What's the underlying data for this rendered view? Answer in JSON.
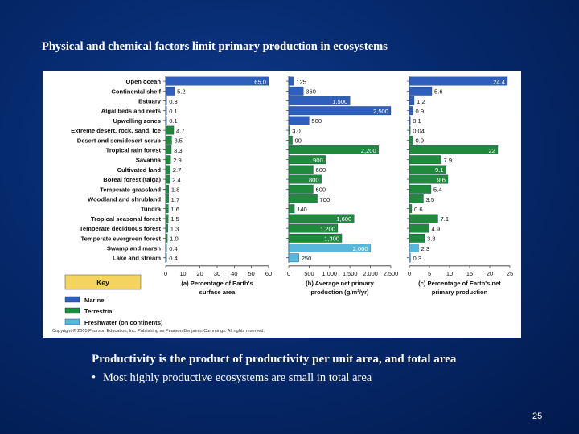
{
  "slide": {
    "title": "Physical and chemical factors limit primary production in ecosystems",
    "caption": "Productivity is the product of productivity per unit area, and total area",
    "bullet_marker": "•",
    "bullet": "Most highly productive ecosystems are small in total area",
    "page_number": "25"
  },
  "colors": {
    "marine": "#2e5fbd",
    "terrestrial": "#1f8a3c",
    "freshwater": "#58b8dc",
    "key_header": "#f4d35e"
  },
  "chart_data": [
    {
      "type": "bar",
      "orientation": "horizontal",
      "categories": [
        "Open ocean",
        "Continental shelf",
        "Estuary",
        "Algal beds and reefs",
        "Upwelling zones",
        "Extreme desert, rock, sand, ice",
        "Desert and semidesert scrub",
        "Tropical rain forest",
        "Savanna",
        "Cultivated land",
        "Boreal forest (taiga)",
        "Temperate grassland",
        "Woodland and shrubland",
        "Tundra",
        "Tropical seasonal forest",
        "Temperate deciduous forest",
        "Temperate evergreen forest",
        "Swamp and marsh",
        "Lake and stream"
      ],
      "category_group": [
        "Marine",
        "Marine",
        "Marine",
        "Marine",
        "Marine",
        "Terrestrial",
        "Terrestrial",
        "Terrestrial",
        "Terrestrial",
        "Terrestrial",
        "Terrestrial",
        "Terrestrial",
        "Terrestrial",
        "Terrestrial",
        "Terrestrial",
        "Terrestrial",
        "Terrestrial",
        "Freshwater (on continents)",
        "Freshwater (on continents)"
      ],
      "values": [
        65.0,
        5.2,
        0.3,
        0.1,
        0.1,
        4.7,
        3.5,
        3.3,
        2.9,
        2.7,
        2.4,
        1.8,
        1.7,
        1.6,
        1.5,
        1.3,
        1.0,
        0.4,
        0.4
      ],
      "value_labels": [
        "65.0",
        "5.2",
        "0.3",
        "0.1",
        "0.1",
        "4.7",
        "3.5",
        "3.3",
        "2.9",
        "2.7",
        "2.4",
        "1.8",
        "1.7",
        "1.6",
        "1.5",
        "1.3",
        "1.0",
        "0.4",
        "0.4"
      ],
      "xlim": [
        0,
        60
      ],
      "xticks": [
        "0",
        "10",
        "20",
        "30",
        "40",
        "50",
        "60"
      ],
      "xlabel": "(a) Percentage of Earth's surface area",
      "xlabel_lines": [
        "(a) Percentage of Earth's",
        "surface area"
      ]
    },
    {
      "type": "bar",
      "orientation": "horizontal",
      "values": [
        125,
        360,
        1500,
        2500,
        500,
        3.0,
        90,
        2200,
        900,
        600,
        800,
        600,
        700,
        140,
        1600,
        1200,
        1300,
        2000,
        250
      ],
      "value_labels": [
        "125",
        "360",
        "1,500",
        "2,500",
        "500",
        "3.0",
        "90",
        "2,200",
        "900",
        "600",
        "800",
        "600",
        "700",
        "140",
        "1,600",
        "1,200",
        "1,300",
        "2,000",
        "250"
      ],
      "xlim": [
        0,
        2500
      ],
      "xticks": [
        "0",
        "500",
        "1,000",
        "1,500",
        "2,000",
        "2,500"
      ],
      "xlabel": "(b) Average net primary production (g/m²/yr)",
      "xlabel_lines": [
        "(b) Average net primary",
        "production (g/m²/yr)"
      ]
    },
    {
      "type": "bar",
      "orientation": "horizontal",
      "values": [
        24.4,
        5.6,
        1.2,
        0.9,
        0.1,
        0.04,
        0.9,
        22,
        7.9,
        9.1,
        9.6,
        5.4,
        3.5,
        0.6,
        7.1,
        4.9,
        3.8,
        2.3,
        0.3
      ],
      "value_labels": [
        "24.4",
        "5.6",
        "1.2",
        "0.9",
        "0.1",
        "0.04",
        "0.9",
        "22",
        "7.9",
        "9.1",
        "9.6",
        "5.4",
        "3.5",
        "0.6",
        "7.1",
        "4.9",
        "3.8",
        "2.3",
        "0.3"
      ],
      "xlim": [
        0,
        25
      ],
      "xticks": [
        "0",
        "5",
        "10",
        "15",
        "20",
        "25"
      ],
      "xlabel": "(c) Percentage of Earth's net primary production",
      "xlabel_lines": [
        "(c) Percentage of Earth's net",
        "primary production"
      ]
    }
  ],
  "key": {
    "title": "Key",
    "items": [
      {
        "label": "Marine",
        "color": "#2e5fbd"
      },
      {
        "label": "Terrestrial",
        "color": "#1f8a3c"
      },
      {
        "label": "Freshwater (on continents)",
        "color": "#58b8dc"
      }
    ]
  },
  "copyright": "Copyright © 2005 Pearson Education, Inc. Publishing as Pearson Benjamin Cummings. All rights reserved."
}
